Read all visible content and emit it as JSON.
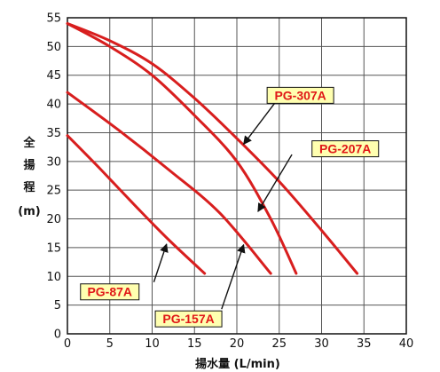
{
  "chart_data": {
    "type": "line",
    "xlabel": "揚水量 (L/min)",
    "ylabel_chars": [
      "全",
      "揚",
      "程",
      "(m)"
    ],
    "xlim": [
      0,
      40
    ],
    "ylim": [
      0,
      55
    ],
    "x_ticks": [
      0,
      5,
      10,
      15,
      20,
      25,
      30,
      35,
      40
    ],
    "y_ticks": [
      0,
      5,
      10,
      15,
      20,
      25,
      30,
      35,
      40,
      45,
      50,
      55
    ],
    "grid": true,
    "series": [
      {
        "name": "PG-87A",
        "color": "#d81e1e",
        "points": [
          [
            0,
            34.5
          ],
          [
            4,
            28.5
          ],
          [
            8,
            22.3
          ],
          [
            12,
            16.3
          ],
          [
            16.2,
            10.5
          ]
        ]
      },
      {
        "name": "PG-157A",
        "color": "#d81e1e",
        "points": [
          [
            0,
            42
          ],
          [
            6,
            35.5
          ],
          [
            12,
            28.5
          ],
          [
            18,
            21
          ],
          [
            24,
            10.5
          ]
        ]
      },
      {
        "name": "PG-207A",
        "color": "#d81e1e",
        "points": [
          [
            0,
            54
          ],
          [
            5,
            50
          ],
          [
            10,
            45
          ],
          [
            15,
            38
          ],
          [
            20,
            30
          ],
          [
            24,
            20
          ],
          [
            27,
            10.5
          ]
        ]
      },
      {
        "name": "PG-307A",
        "color": "#d81e1e",
        "points": [
          [
            0,
            54
          ],
          [
            5,
            51
          ],
          [
            10,
            47
          ],
          [
            15,
            41
          ],
          [
            20,
            34
          ],
          [
            25,
            26.5
          ],
          [
            30,
            18
          ],
          [
            34.2,
            10.5
          ]
        ]
      }
    ],
    "callouts": [
      {
        "label": "PG-307A",
        "series": "PG-307A",
        "box_at": [
          27.5,
          41.5
        ],
        "arrow_from": [
          24.5,
          40.2
        ],
        "arrow_to": [
          20.8,
          33
        ]
      },
      {
        "label": "PG-207A",
        "series": "PG-207A",
        "box_at": [
          32.8,
          32.2
        ],
        "arrow_from": [
          26.5,
          31.2
        ],
        "arrow_to": [
          22.5,
          21.3
        ]
      },
      {
        "label": "PG-87A",
        "series": "PG-87A",
        "box_at": [
          5.0,
          7.3
        ],
        "arrow_from": [
          10.2,
          9.0
        ],
        "arrow_to": [
          11.7,
          15.6
        ]
      },
      {
        "label": "PG-157A",
        "series": "PG-157A",
        "box_at": [
          14.3,
          2.6
        ],
        "arrow_from": [
          18.2,
          4.3
        ],
        "arrow_to": [
          20.8,
          15.5
        ]
      }
    ],
    "colors": {
      "curve": "#d81e1e",
      "callout_fill": "#ffffb0",
      "callout_text": "#e01818",
      "arrow": "#111111",
      "grid": "#555555"
    }
  }
}
